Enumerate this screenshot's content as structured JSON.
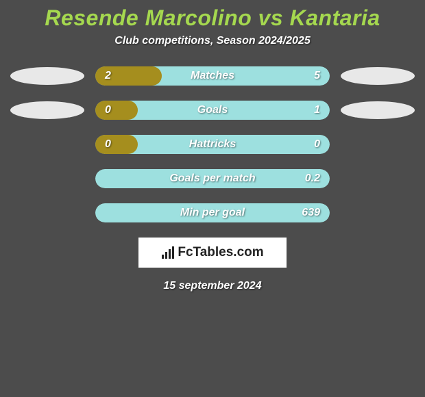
{
  "header": {
    "title": "Resende Marcolino vs Kantaria",
    "subtitle": "Club competitions, Season 2024/2025"
  },
  "colors": {
    "background": "#4c4c4c",
    "title_color": "#a5d84f",
    "text_color": "#ffffff",
    "left_bar_color": "#a58e1e",
    "right_bar_color": "#9de0df",
    "ellipse_color": "#e8e8e8",
    "logo_bg": "#ffffff",
    "logo_text": "#222222"
  },
  "stats": [
    {
      "label": "Matches",
      "left_value": "2",
      "right_value": "5",
      "left_pct": 28.5,
      "right_pct": 100,
      "show_ellipses": true
    },
    {
      "label": "Goals",
      "left_value": "0",
      "right_value": "1",
      "left_pct": 18,
      "right_pct": 100,
      "show_ellipses": true
    },
    {
      "label": "Hattricks",
      "left_value": "0",
      "right_value": "0",
      "left_pct": 18,
      "right_pct": 100,
      "show_ellipses": false
    },
    {
      "label": "Goals per match",
      "left_value": "",
      "right_value": "0.2",
      "left_pct": 0,
      "right_pct": 100,
      "show_ellipses": false
    },
    {
      "label": "Min per goal",
      "left_value": "",
      "right_value": "639",
      "left_pct": 0,
      "right_pct": 100,
      "show_ellipses": false
    }
  ],
  "footer": {
    "logo_text": "FcTables.com",
    "date": "15 september 2024"
  },
  "typography": {
    "title_fontsize": 32,
    "subtitle_fontsize": 16,
    "label_fontsize": 16,
    "logo_fontsize": 19
  }
}
